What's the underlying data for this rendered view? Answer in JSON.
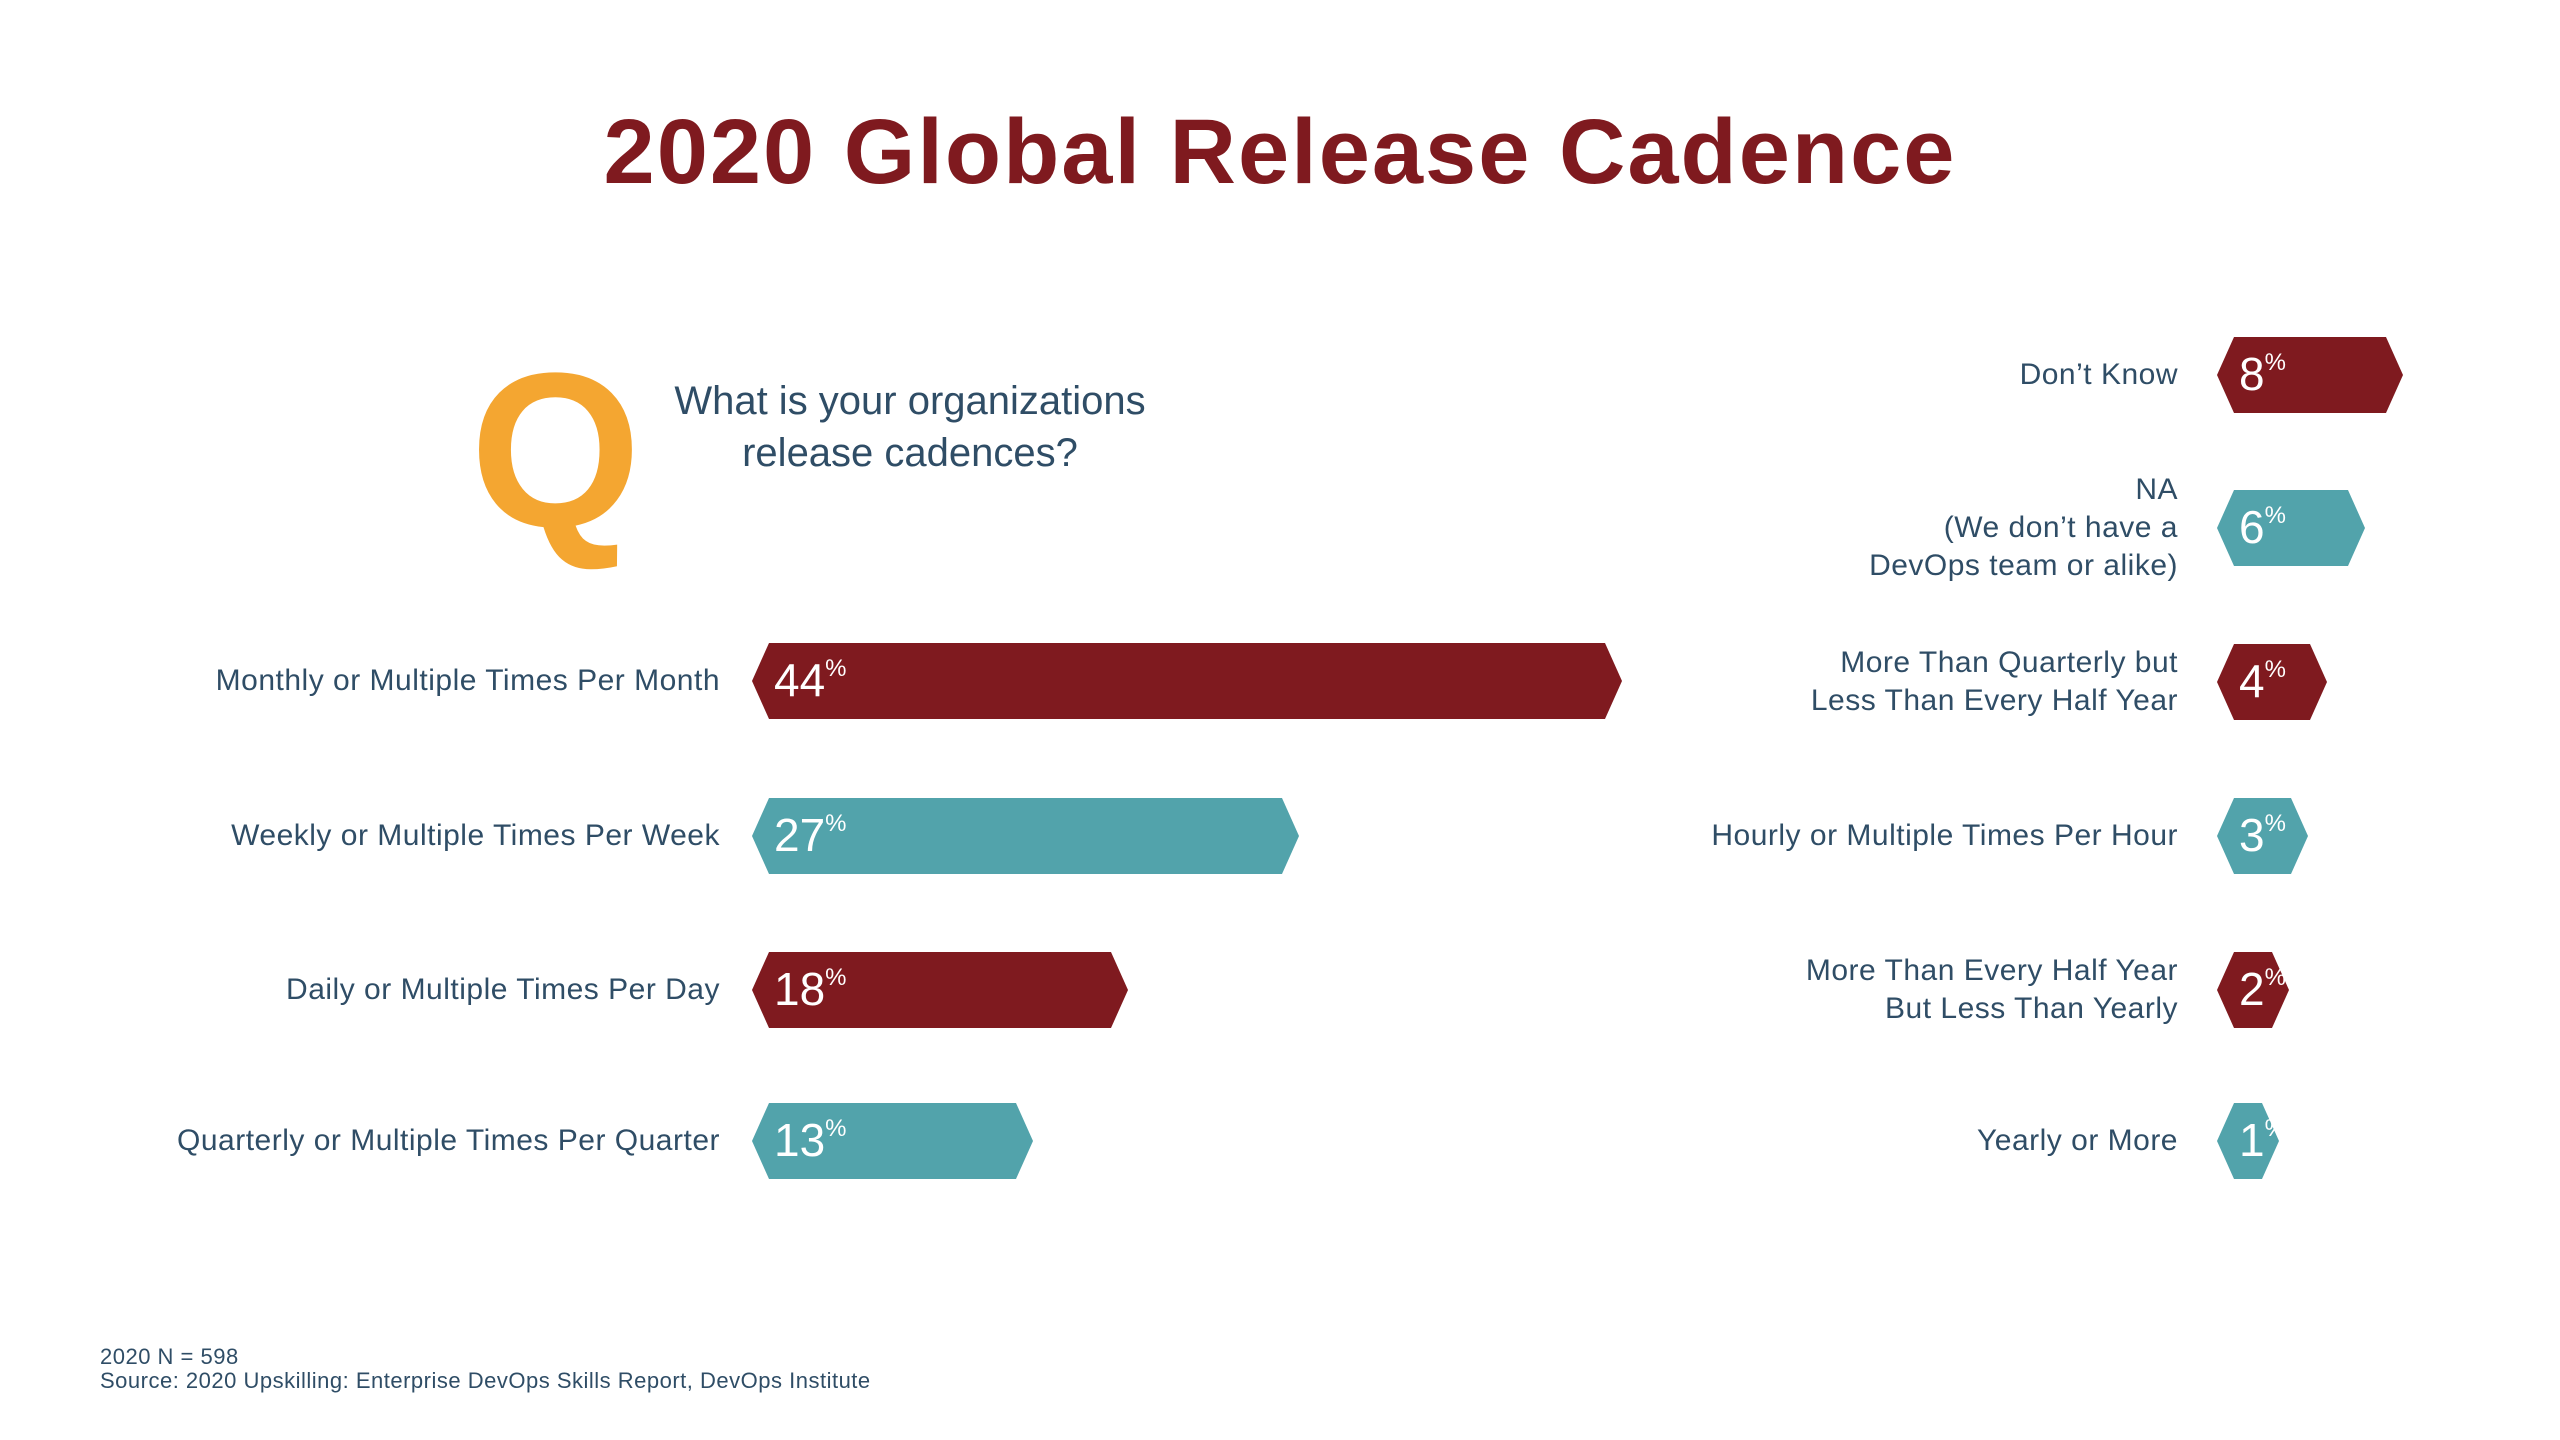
{
  "title": "2020 Global Release Cadence",
  "question": {
    "letter": "Q",
    "text": "What is your organizations release cadences?"
  },
  "colors": {
    "dark_red": "#7f1a1f",
    "teal": "#52a3ab",
    "orange": "#f4a631",
    "label": "#2f4d66"
  },
  "chart_data": {
    "type": "bar",
    "orientation": "horizontal",
    "unit": "%",
    "left_column": [
      {
        "label": "Monthly or Multiple Times Per Month",
        "value": 44,
        "color": "dark_red"
      },
      {
        "label": "Weekly or Multiple Times Per Week",
        "value": 27,
        "color": "teal"
      },
      {
        "label": "Daily or Multiple Times Per Day",
        "value": 18,
        "color": "dark_red"
      },
      {
        "label": "Quarterly or Multiple Times Per Quarter",
        "value": 13,
        "color": "teal"
      }
    ],
    "right_column": [
      {
        "label": "Don’t Know",
        "value": 8,
        "color": "dark_red"
      },
      {
        "label": "NA\n(We don’t have a\nDevOps team or alike)",
        "value": 6,
        "color": "teal"
      },
      {
        "label": "More Than Quarterly but\nLess Than Every Half Year",
        "value": 4,
        "color": "dark_red"
      },
      {
        "label": "Hourly or Multiple Times Per Hour",
        "value": 3,
        "color": "teal"
      },
      {
        "label": "More Than Every Half Year\nBut Less Than Yearly",
        "value": 2,
        "color": "dark_red"
      },
      {
        "label": "Yearly or More",
        "value": 1,
        "color": "teal"
      }
    ]
  },
  "footnote": {
    "sample": "2020 N = 598",
    "source": "Source: 2020 Upskilling: Enterprise DevOps Skills Report, DevOps Institute"
  }
}
